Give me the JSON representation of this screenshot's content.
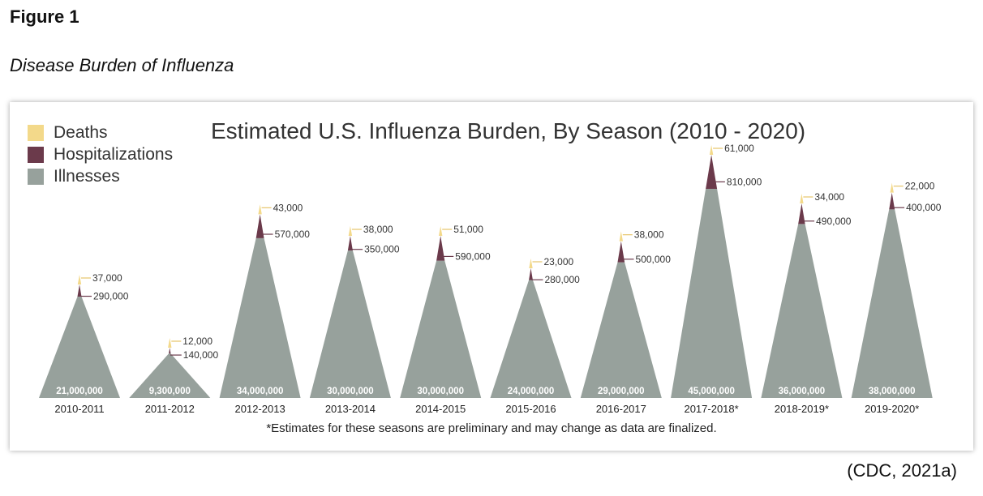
{
  "figure": {
    "label": "Figure 1",
    "title": "Disease Burden of Influenza",
    "citation": "(CDC, 2021a)"
  },
  "chart_data": {
    "type": "stacked-triangle",
    "title": "Estimated U.S. Influenza Burden, By Season (2010 - 2020)",
    "legend": [
      {
        "name": "Deaths",
        "color": "#f3d98a"
      },
      {
        "name": "Hospitalizations",
        "color": "#6b3a4b"
      },
      {
        "name": "Illnesses",
        "color": "#97a19c"
      }
    ],
    "categories": [
      "2010-2011",
      "2011-2012",
      "2012-2013",
      "2013-2014",
      "2014-2015",
      "2015-2016",
      "2016-2017",
      "2017-2018*",
      "2018-2019*",
      "2019-2020*"
    ],
    "series": [
      {
        "name": "Illnesses",
        "values": [
          21000000,
          9300000,
          34000000,
          30000000,
          30000000,
          24000000,
          29000000,
          45000000,
          36000000,
          38000000
        ],
        "labels": [
          "21,000,000",
          "9,300,000",
          "34,000,000",
          "30,000,000",
          "30,000,000",
          "24,000,000",
          "29,000,000",
          "45,000,000",
          "36,000,000",
          "38,000,000"
        ]
      },
      {
        "name": "Hospitalizations",
        "values": [
          290000,
          140000,
          570000,
          350000,
          590000,
          280000,
          500000,
          810000,
          490000,
          400000
        ],
        "labels": [
          "290,000",
          "140,000",
          "570,000",
          "350,000",
          "590,000",
          "280,000",
          "500,000",
          "810,000",
          "490,000",
          "400,000"
        ]
      },
      {
        "name": "Deaths",
        "values": [
          37000,
          12000,
          43000,
          38000,
          51000,
          23000,
          38000,
          61000,
          34000,
          22000
        ],
        "labels": [
          "37,000",
          "12,000",
          "43,000",
          "38,000",
          "51,000",
          "23,000",
          "38,000",
          "61,000",
          "34,000",
          "22,000"
        ]
      }
    ],
    "footnote": "*Estimates for these seasons are preliminary and may change as data are finalized."
  }
}
